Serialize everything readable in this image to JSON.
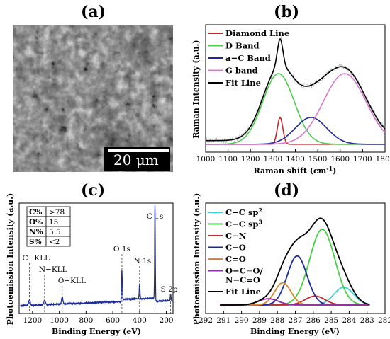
{
  "panels": {
    "a": {
      "label": "(a)",
      "scale_text": "20 μm"
    },
    "b": {
      "label": "(b)",
      "chart_data": {
        "type": "line",
        "xlabel": "Raman shift (cm",
        "xlabel_sup": "-1",
        "xlabel_end": ")",
        "ylabel": "Raman Intensity (a.u.)",
        "xlim": [
          1000,
          1800
        ],
        "xticks": [
          1000,
          1100,
          1200,
          1300,
          1400,
          1500,
          1600,
          1700,
          1800
        ],
        "legend_placement": "top-left",
        "series": [
          {
            "name": "Diamond Line",
            "color": "#c0282c",
            "kind": "gauss",
            "center": 1332,
            "width": 12,
            "amp": 0.22,
            "base": 0.03
          },
          {
            "name": "D Band",
            "color": "#4ccc4c",
            "kind": "gauss",
            "center": 1325,
            "width": 70,
            "amp": 0.58,
            "base": 0.03
          },
          {
            "name": "a−C Band",
            "color": "#1a2a9a",
            "kind": "gauss",
            "center": 1470,
            "width": 70,
            "amp": 0.22,
            "base": 0.03
          },
          {
            "name": "G band",
            "color": "#d878d0",
            "kind": "gauss",
            "center": 1620,
            "width": 95,
            "amp": 0.58,
            "base": 0.03
          },
          {
            "name": "Fit Line",
            "color": "#000000",
            "kind": "sum",
            "base": 0.06
          }
        ]
      }
    },
    "c": {
      "label": "(c)",
      "chart_data": {
        "type": "line",
        "xlabel": "Binding Energy (eV)",
        "ylabel": "Photoemission Intensity (a.u.)",
        "xlim": [
          1300,
          150
        ],
        "xticks": [
          1200,
          1000,
          800,
          600,
          400,
          200
        ],
        "series_color": "#1a2a9a",
        "annotations": [
          "C−KLL",
          "N−KLL",
          "O−KLL",
          "O 1s",
          "N 1s",
          "C 1s",
          "S 2p"
        ],
        "peaks": [
          {
            "be": 1223,
            "amp": 0.05,
            "w": 6
          },
          {
            "be": 1110,
            "amp": 0.04,
            "w": 6
          },
          {
            "be": 978,
            "amp": 0.07,
            "w": 5
          },
          {
            "be": 532,
            "amp": 0.3,
            "w": 3
          },
          {
            "be": 400,
            "amp": 0.14,
            "w": 3
          },
          {
            "be": 285,
            "amp": 0.93,
            "w": 2.5
          },
          {
            "be": 168,
            "amp": 0.06,
            "w": 3
          }
        ],
        "table": [
          [
            "C%",
            ">78"
          ],
          [
            "O%",
            "15"
          ],
          [
            "N%",
            "5.5"
          ],
          [
            "S%",
            "<2"
          ]
        ]
      }
    },
    "d": {
      "label": "(d)",
      "chart_data": {
        "type": "line",
        "xlabel": "Binding Energy (eV)",
        "ylabel": "Photoemission Intensity (a.u.)",
        "xlim": [
          292,
          282
        ],
        "xticks": [
          292,
          291,
          290,
          289,
          288,
          287,
          286,
          285,
          284,
          283,
          282
        ],
        "legend_placement": "top-left",
        "series": [
          {
            "name": "C−C sp",
            "sup": "2",
            "color": "#3cd0d8",
            "kind": "gauss",
            "center": 284.3,
            "width": 0.55,
            "amp": 0.2
          },
          {
            "name": "C−C sp",
            "sup": "3",
            "color": "#44d044",
            "kind": "gauss",
            "center": 285.5,
            "width": 0.7,
            "amp": 0.85
          },
          {
            "name": "C−N",
            "color": "#c0282c",
            "kind": "gauss",
            "center": 285.9,
            "width": 0.55,
            "amp": 0.1
          },
          {
            "name": "C−O",
            "color": "#1a2a9a",
            "kind": "gauss",
            "center": 286.9,
            "width": 0.55,
            "amp": 0.55
          },
          {
            "name": "C=O",
            "color": "#d8882c",
            "kind": "gauss",
            "center": 287.7,
            "width": 0.45,
            "amp": 0.25
          },
          {
            "name": "O−C=O/",
            "name2": "N−C=O",
            "color": "#8a2aa8",
            "kind": "gauss",
            "center": 288.5,
            "width": 0.55,
            "amp": 0.07
          },
          {
            "name": "Fit Line",
            "color": "#000000",
            "kind": "sum"
          }
        ]
      }
    }
  }
}
